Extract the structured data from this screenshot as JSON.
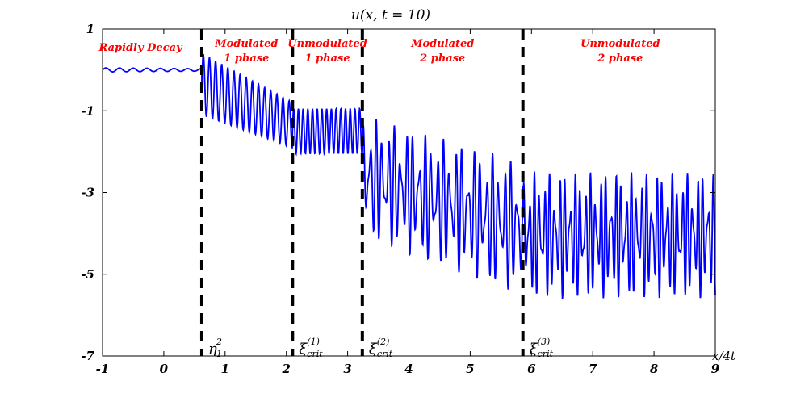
{
  "chart_data": {
    "type": "line",
    "title": "u(x, t = 10)",
    "xlabel": "x/4t",
    "ylabel": "",
    "xlim": [
      -1,
      9
    ],
    "ylim": [
      -7,
      1
    ],
    "x_ticks": [
      "-1",
      "0",
      "1",
      "2",
      "3",
      "4",
      "5",
      "6",
      "7",
      "8",
      "9"
    ],
    "y_ticks": [
      "1",
      "-1",
      "-3",
      "-5",
      "-7"
    ],
    "series": [
      {
        "name": "u(x, t=10)",
        "color": "#0000ff",
        "segments": [
          {
            "region": "Rapidly Decay",
            "x_start": -1.0,
            "x_end": 0.62,
            "center": 0.0,
            "amp_start": 0.05,
            "amp_end": 0.03,
            "freq": 4.5
          },
          {
            "region": "Modulated 1 phase",
            "x_start": 0.62,
            "x_end": 2.1,
            "center_start": -0.35,
            "center_end": -1.35,
            "amp_start": 0.75,
            "amp_end": 0.55,
            "freq": 10
          },
          {
            "region": "Unmodulated 1 phase",
            "x_start": 2.1,
            "x_end": 3.24,
            "center": -1.5,
            "amp": 0.55,
            "freq": 13
          },
          {
            "region": "Modulated 2 phase",
            "x_start": 3.24,
            "x_end": 5.86,
            "center_start": -2.6,
            "center_end": -3.9,
            "amp_start": 1.5,
            "amp_end": 1.65,
            "freq": 10
          },
          {
            "region": "Unmodulated 2 phase",
            "x_start": 5.86,
            "x_end": 9.0,
            "center": -4.05,
            "amp": 1.55,
            "freq": 12
          }
        ]
      }
    ],
    "vertical_lines": [
      {
        "x": 0.62,
        "label": "η",
        "sup": "2",
        "sub": "1"
      },
      {
        "x": 2.1,
        "label": "ξ",
        "sup": "(1)",
        "sub": "crit"
      },
      {
        "x": 3.24,
        "label": "ξ",
        "sup": "(2)",
        "sub": "crit"
      },
      {
        "x": 5.86,
        "label": "ξ",
        "sup": "(3)",
        "sub": "crit"
      }
    ],
    "regions": [
      {
        "lines": [
          "Rapidly Decay"
        ],
        "x": -0.38
      },
      {
        "lines": [
          "Modulated",
          "1 phase"
        ],
        "x": 1.35
      },
      {
        "lines": [
          "Unmodulated",
          "1 phase"
        ],
        "x": 2.67
      },
      {
        "lines": [
          "Modulated",
          "2 phase"
        ],
        "x": 4.55
      },
      {
        "lines": [
          "Unmodulated",
          "2 phase"
        ],
        "x": 7.45
      }
    ],
    "grid": false
  }
}
